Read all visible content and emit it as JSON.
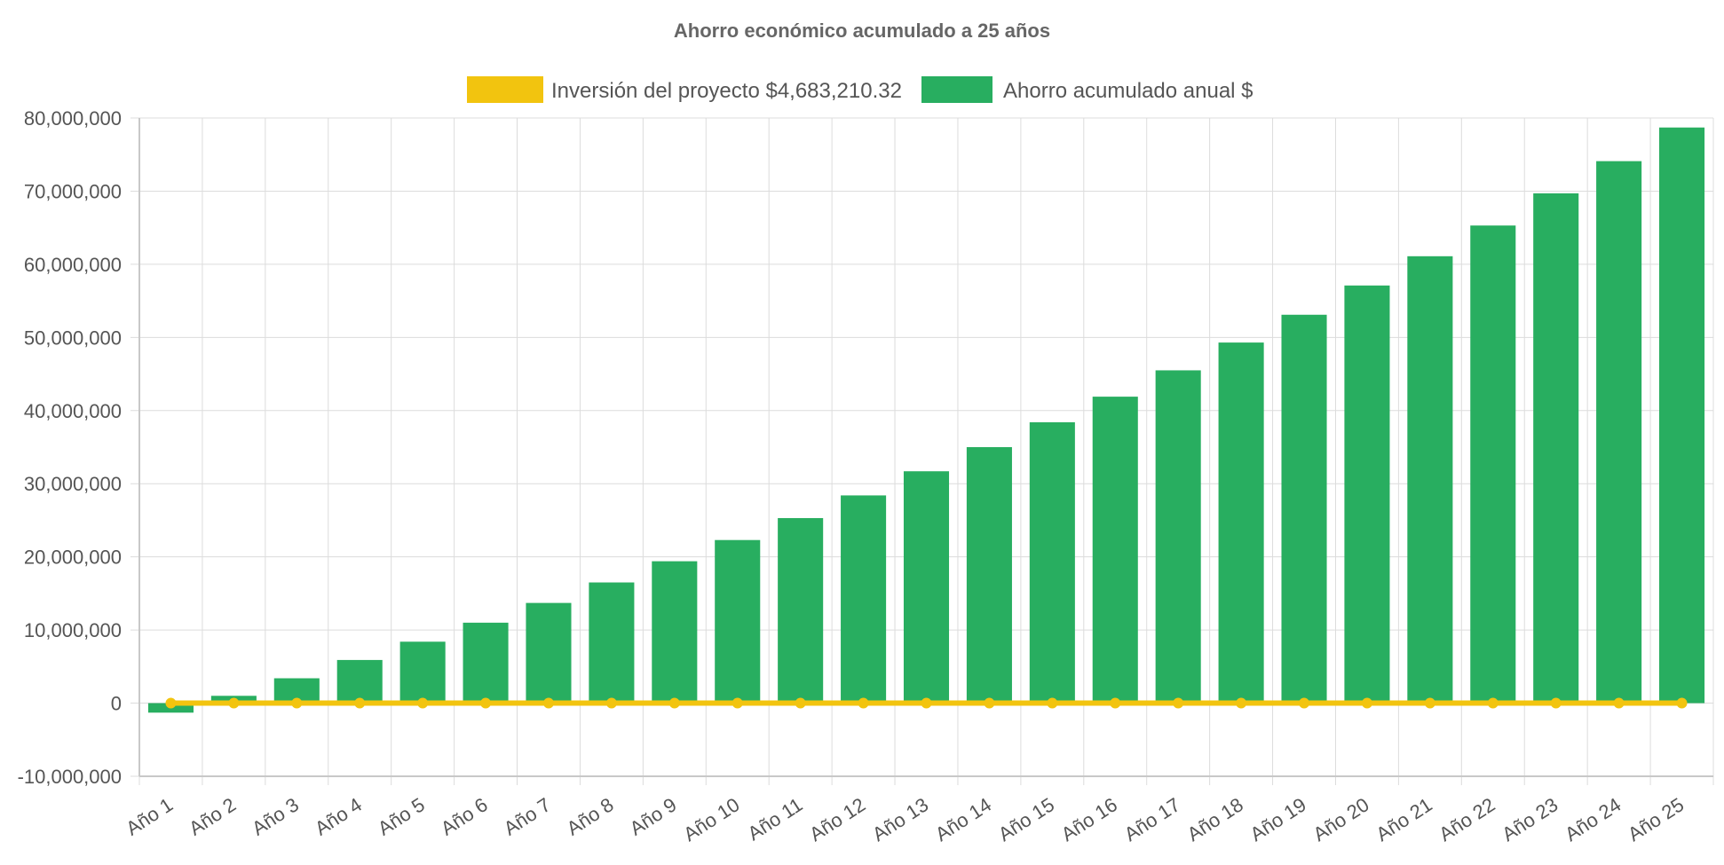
{
  "chart_data": {
    "type": "bar",
    "title": "Ahorro económico acumulado a 25 años",
    "xlabel": "",
    "ylabel": "",
    "ylim": [
      -10000000,
      80000000
    ],
    "yticks": [
      -10000000,
      0,
      10000000,
      20000000,
      30000000,
      40000000,
      50000000,
      60000000,
      70000000,
      80000000
    ],
    "ytick_labels": [
      "-10,000,000",
      "0",
      "10,000,000",
      "20,000,000",
      "30,000,000",
      "40,000,000",
      "50,000,000",
      "60,000,000",
      "70,000,000",
      "80,000,000"
    ],
    "grid": true,
    "legend_position": "top",
    "categories": [
      "Año 1",
      "Año 2",
      "Año 3",
      "Año 4",
      "Año 5",
      "Año 6",
      "Año 7",
      "Año 8",
      "Año 9",
      "Año 10",
      "Año 11",
      "Año 12",
      "Año 13",
      "Año 14",
      "Año 15",
      "Año 16",
      "Año 17",
      "Año 18",
      "Año 19",
      "Año 20",
      "Año 21",
      "Año 22",
      "Año 23",
      "Año 24",
      "Año 25"
    ],
    "series": [
      {
        "name": "Inversión del proyecto $4,683,210.32",
        "type": "line",
        "color": "#f2c40f",
        "values": [
          0,
          0,
          0,
          0,
          0,
          0,
          0,
          0,
          0,
          0,
          0,
          0,
          0,
          0,
          0,
          0,
          0,
          0,
          0,
          0,
          0,
          0,
          0,
          0,
          0
        ]
      },
      {
        "name": "Ahorro acumulado anual $",
        "type": "bar",
        "color": "#28ae60",
        "values": [
          -1300000,
          1000000,
          3400000,
          5900000,
          8400000,
          11000000,
          13700000,
          16500000,
          19400000,
          22300000,
          25300000,
          28400000,
          31700000,
          35000000,
          38400000,
          41900000,
          45500000,
          49300000,
          53100000,
          57100000,
          61100000,
          65300000,
          69700000,
          74100000,
          78700000
        ]
      }
    ]
  }
}
